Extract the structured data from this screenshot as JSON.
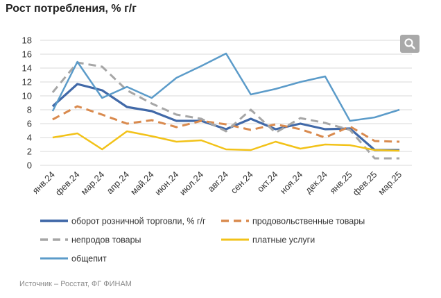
{
  "title": "Рост потребления, % г/г",
  "source": "Источник – Росстат, ФГ ФИНАМ",
  "zoom_icon": "search-icon",
  "chart_data": {
    "type": "line",
    "categories": [
      "янв.24",
      "фев.24",
      "мар.24",
      "апр.24",
      "май.24",
      "июн.24",
      "июл.24",
      "авг.24",
      "сен.24",
      "окт.24",
      "ноя.24",
      "дек.24",
      "янв.25",
      "фев.25",
      "мар.25"
    ],
    "ylim": [
      0,
      18
    ],
    "yticks": [
      0,
      2,
      4,
      6,
      8,
      10,
      12,
      14,
      16,
      18
    ],
    "grid": true,
    "legend_position": "bottom",
    "series": [
      {
        "name": "оборот розничной торговли, % г/г",
        "color": "#4169a8",
        "dash": "solid",
        "width": 3.2,
        "values": [
          8.5,
          11.7,
          10.8,
          8.4,
          7.8,
          6.4,
          6.4,
          5.2,
          6.7,
          5.2,
          6.0,
          5.2,
          5.3,
          2.2,
          2.2
        ]
      },
      {
        "name": "продовольственные товары",
        "color": "#d98a4e",
        "dash": "dashed",
        "width": 3,
        "values": [
          6.6,
          8.5,
          7.3,
          6.0,
          6.5,
          5.5,
          6.4,
          5.9,
          5.1,
          5.9,
          5.2,
          4.0,
          5.6,
          3.5,
          3.4
        ]
      },
      {
        "name": "непродов товары",
        "color": "#a6a6a6",
        "dash": "dashed",
        "width": 3,
        "values": [
          10.5,
          14.8,
          14.2,
          10.8,
          8.9,
          7.3,
          6.7,
          4.9,
          8.0,
          4.7,
          6.8,
          6.1,
          5.1,
          1.0,
          1.0
        ]
      },
      {
        "name": "платные услуги",
        "color": "#f2c218",
        "dash": "solid",
        "width": 2.5,
        "values": [
          4.0,
          4.6,
          2.3,
          4.9,
          4.2,
          3.4,
          3.6,
          2.3,
          2.2,
          3.4,
          2.4,
          3.0,
          2.9,
          2.2,
          2.1
        ]
      },
      {
        "name": "общепит",
        "color": "#5b9bc9",
        "dash": "solid",
        "width": 2.5,
        "values": [
          7.8,
          14.9,
          9.7,
          11.3,
          9.7,
          12.6,
          14.3,
          16.1,
          10.2,
          11.0,
          12.0,
          12.8,
          6.4,
          6.9,
          8.0
        ]
      }
    ]
  }
}
